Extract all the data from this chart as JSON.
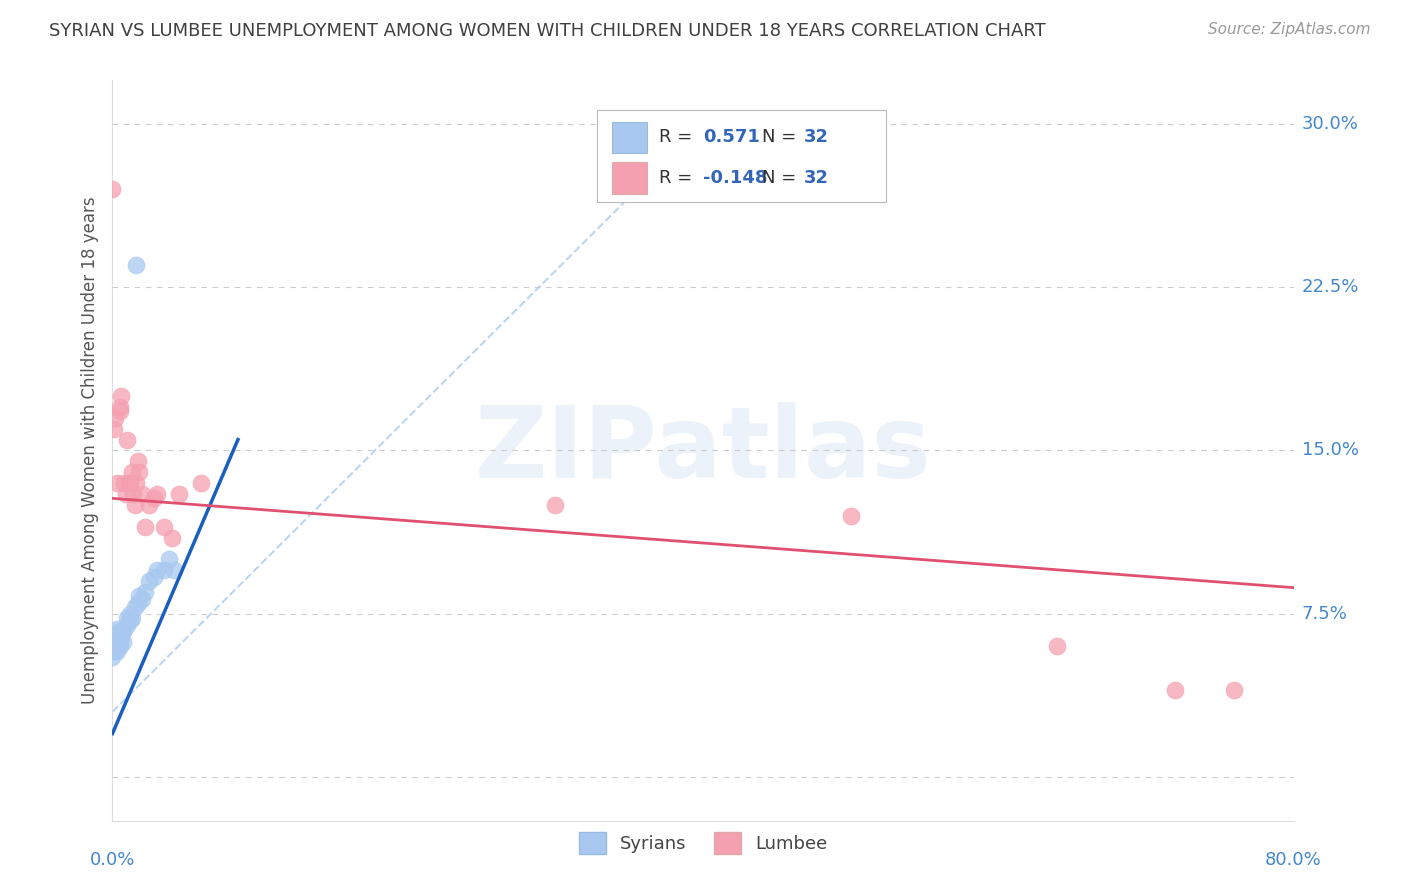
{
  "title": "SYRIAN VS LUMBEE UNEMPLOYMENT AMONG WOMEN WITH CHILDREN UNDER 18 YEARS CORRELATION CHART",
  "source": "Source: ZipAtlas.com",
  "ylabel": "Unemployment Among Women with Children Under 18 years",
  "xlim": [
    0,
    0.8
  ],
  "ylim": [
    -0.02,
    0.32
  ],
  "xticks": [
    0.0,
    0.1,
    0.2,
    0.3,
    0.4,
    0.5,
    0.6,
    0.7,
    0.8
  ],
  "yticks": [
    0.0,
    0.075,
    0.15,
    0.225,
    0.3
  ],
  "yticklabels": [
    "",
    "7.5%",
    "15.0%",
    "22.5%",
    "30.0%"
  ],
  "syrian_R": "0.571",
  "syrian_N": "32",
  "lumbee_R": "-0.148",
  "lumbee_N": "32",
  "syrian_color": "#a8c8f0",
  "lumbee_color": "#f5a0b0",
  "syrian_line_color": "#1a5fbf",
  "lumbee_line_color": "#e05070",
  "legend_label_syrian": "Syrians",
  "legend_label_lumbee": "Lumbee",
  "syrian_x": [
    0.0,
    0.0,
    0.0,
    0.002,
    0.002,
    0.003,
    0.003,
    0.003,
    0.005,
    0.005,
    0.005,
    0.006,
    0.007,
    0.007,
    0.008,
    0.01,
    0.01,
    0.012,
    0.012,
    0.013,
    0.015,
    0.016,
    0.017,
    0.018,
    0.02,
    0.022,
    0.025,
    0.028,
    0.03,
    0.035,
    0.038,
    0.042
  ],
  "syrian_y": [
    0.055,
    0.06,
    0.065,
    0.058,
    0.062,
    0.058,
    0.063,
    0.068,
    0.06,
    0.063,
    0.067,
    0.065,
    0.062,
    0.067,
    0.068,
    0.07,
    0.073,
    0.072,
    0.075,
    0.073,
    0.078,
    0.235,
    0.08,
    0.083,
    0.082,
    0.085,
    0.09,
    0.092,
    0.095,
    0.095,
    0.1,
    0.095
  ],
  "lumbee_x": [
    0.0,
    0.001,
    0.002,
    0.003,
    0.005,
    0.005,
    0.006,
    0.008,
    0.009,
    0.01,
    0.011,
    0.012,
    0.013,
    0.014,
    0.015,
    0.016,
    0.017,
    0.018,
    0.02,
    0.022,
    0.025,
    0.028,
    0.03,
    0.035,
    0.04,
    0.045,
    0.06,
    0.3,
    0.5,
    0.64,
    0.72,
    0.76
  ],
  "lumbee_y": [
    0.27,
    0.16,
    0.165,
    0.135,
    0.168,
    0.17,
    0.175,
    0.135,
    0.13,
    0.155,
    0.135,
    0.135,
    0.14,
    0.13,
    0.125,
    0.135,
    0.145,
    0.14,
    0.13,
    0.115,
    0.125,
    0.128,
    0.13,
    0.115,
    0.11,
    0.13,
    0.135,
    0.125,
    0.12,
    0.06,
    0.04,
    0.04
  ],
  "background_color": "#ffffff",
  "grid_color": "#cccccc",
  "title_color": "#404040",
  "axis_label_color": "#555555",
  "tick_label_color": "#4488cc",
  "watermark_text": "ZIPatlas",
  "ref_line_start_x": 0.0,
  "ref_line_start_y": 0.03,
  "ref_line_end_x": 0.4,
  "ref_line_end_y": 0.3
}
